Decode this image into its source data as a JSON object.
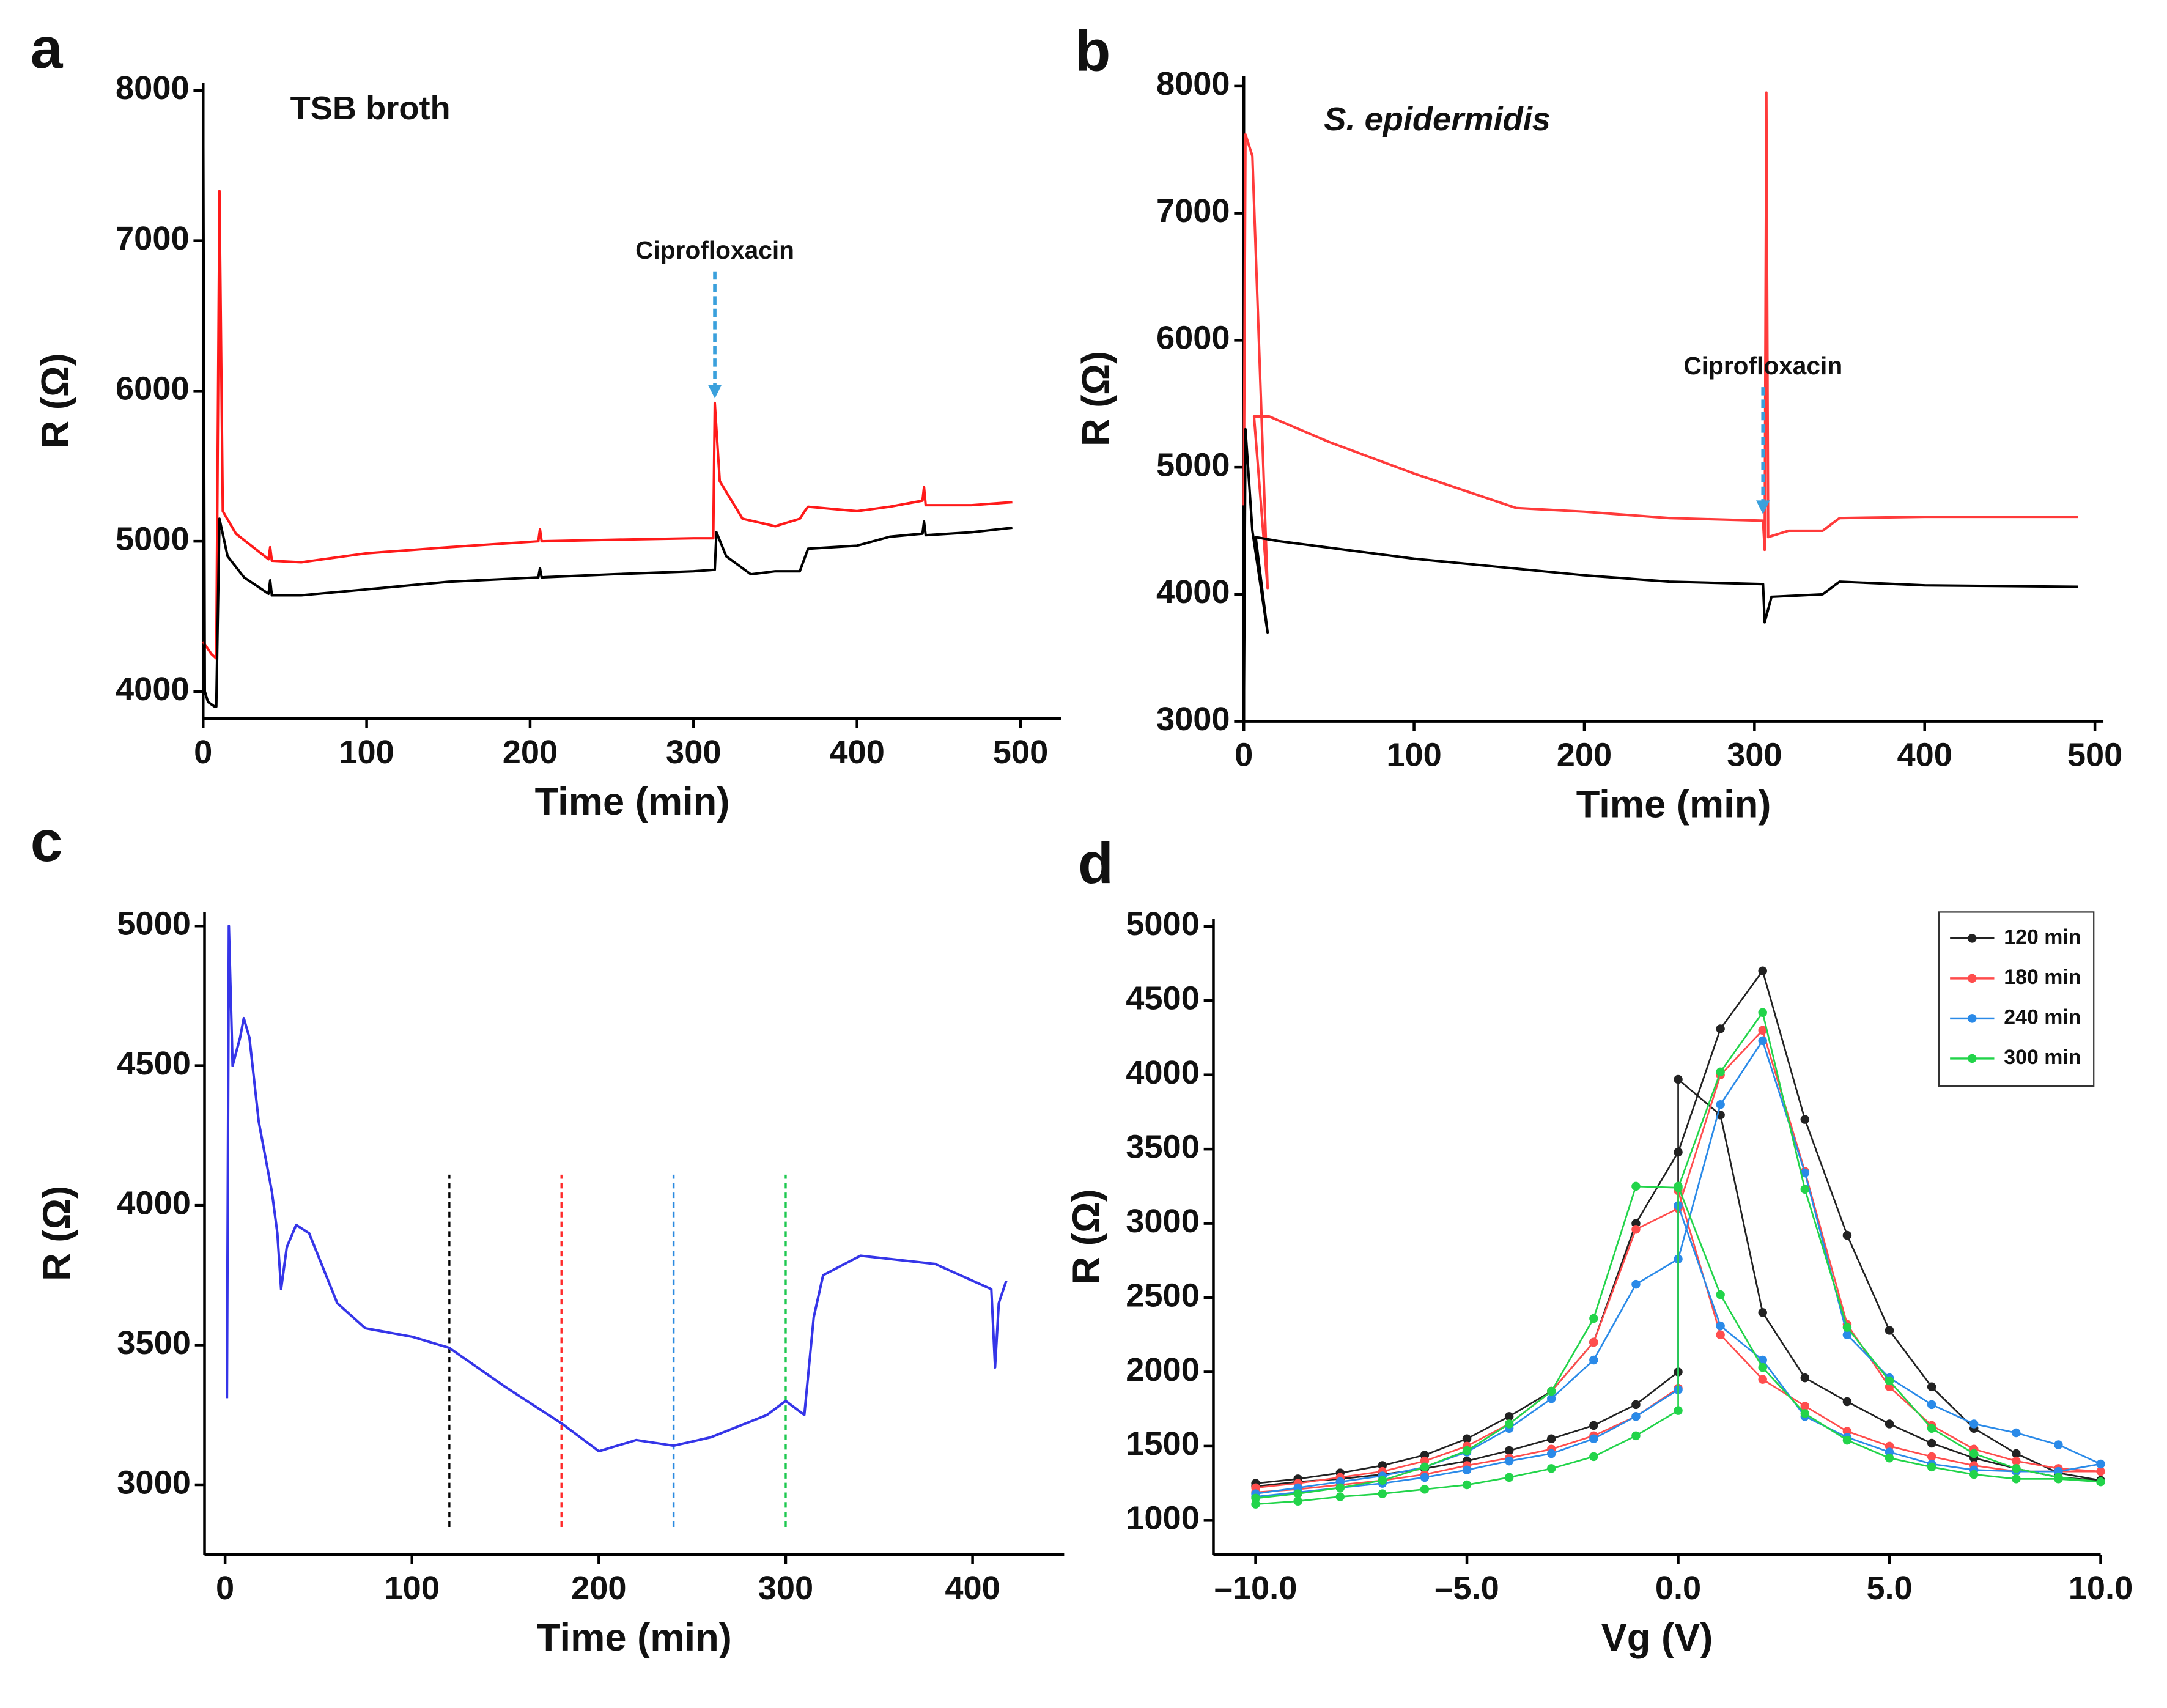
{
  "chart_data": [
    {
      "type": "line",
      "label": "a",
      "title": "TSB broth",
      "xlabel": "Time (min)",
      "ylabel": "R (Ω)",
      "xlim": [
        0,
        525
      ],
      "ylim": [
        3820,
        8050
      ],
      "xticks": [
        0,
        100,
        200,
        300,
        400,
        500
      ],
      "yticks": [
        4000,
        5000,
        6000,
        7000,
        8000
      ],
      "annotations": [
        {
          "text": "Ciprofloxacin",
          "x": 313,
          "y": 5950,
          "color": "#3aa0dc"
        }
      ],
      "series": [
        {
          "color": "#ff1a1a",
          "x": [
            0,
            5,
            8,
            10,
            12,
            20,
            40,
            41,
            42,
            60,
            100,
            150,
            205,
            206,
            207,
            250,
            300,
            312,
            313,
            316,
            330,
            350,
            365,
            368,
            370,
            400,
            420,
            440,
            441,
            442,
            470,
            495
          ],
          "values": [
            4330,
            4250,
            4220,
            7330,
            5200,
            5050,
            4880,
            4960,
            4870,
            4860,
            4920,
            4960,
            5000,
            5080,
            5000,
            5010,
            5020,
            5020,
            5920,
            5400,
            5150,
            5100,
            5150,
            5200,
            5230,
            5200,
            5230,
            5270,
            5360,
            5240,
            5240,
            5260
          ]
        },
        {
          "color": "#000000",
          "x": [
            0,
            1,
            3,
            7,
            8,
            10,
            15,
            25,
            40,
            41,
            42,
            60,
            100,
            150,
            205,
            206,
            207,
            250,
            300,
            313,
            314,
            320,
            335,
            350,
            365,
            370,
            400,
            420,
            440,
            441,
            442,
            470,
            495
          ],
          "values": [
            7950,
            4000,
            3930,
            3900,
            3900,
            5150,
            4900,
            4760,
            4650,
            4740,
            4640,
            4640,
            4680,
            4730,
            4760,
            4820,
            4760,
            4780,
            4800,
            4810,
            5060,
            4900,
            4780,
            4800,
            4800,
            4950,
            4970,
            5030,
            5050,
            5130,
            5040,
            5060,
            5090
          ]
        }
      ]
    },
    {
      "type": "line",
      "label": "b",
      "title": "S. epidermidis",
      "xlabel": "Time (min)",
      "ylabel": "R (Ω)",
      "xlim": [
        0,
        505
      ],
      "ylim": [
        3000,
        8080
      ],
      "xticks": [
        0,
        100,
        200,
        300,
        400,
        500
      ],
      "yticks": [
        3000,
        4000,
        5000,
        6000,
        7000,
        8000
      ],
      "annotations": [
        {
          "text": "Ciprofloxacin",
          "x": 305,
          "y": 4630,
          "color": "#3aa0dc"
        }
      ],
      "series": [
        {
          "color": "#ff3b3b",
          "x": [
            0,
            1,
            5,
            14,
            6,
            15,
            50,
            100,
            160,
            200,
            250,
            305,
            306,
            307,
            308,
            320,
            340,
            350,
            400,
            490
          ],
          "values": [
            4700,
            7620,
            7450,
            4050,
            5400,
            5400,
            5200,
            4950,
            4680,
            4650,
            4600,
            4580,
            4350,
            7950,
            4450,
            4500,
            4500,
            4600,
            4610,
            4610
          ]
        },
        {
          "color": "#000000",
          "x": [
            0,
            1,
            5,
            14,
            7,
            20,
            100,
            200,
            250,
            305,
            306,
            310,
            340,
            350,
            400,
            490
          ],
          "values": [
            3000,
            5300,
            4500,
            3700,
            4450,
            4420,
            4280,
            4150,
            4100,
            4080,
            3780,
            3980,
            4000,
            4100,
            4070,
            4060
          ]
        }
      ]
    },
    {
      "type": "line",
      "label": "c",
      "xlabel": "Time (min)",
      "ylabel": "R (Ω)",
      "xlim": [
        -11,
        449
      ],
      "ylim": [
        2750,
        5050
      ],
      "xticks": [
        0,
        100,
        200,
        300,
        400
      ],
      "yticks": [
        3000,
        3500,
        4000,
        4500,
        5000
      ],
      "reference_lines": [
        {
          "x": 120,
          "top": 4110,
          "color": "#000000"
        },
        {
          "x": 180,
          "top": 4110,
          "color": "#ff2a2a"
        },
        {
          "x": 240,
          "top": 4110,
          "color": "#2a8ae0"
        },
        {
          "x": 300,
          "top": 4110,
          "color": "#1ec850"
        }
      ],
      "series": [
        {
          "color": "#3535e8",
          "x": [
            1,
            2,
            4,
            8,
            10,
            13,
            18,
            25,
            28,
            30,
            33,
            38,
            45,
            60,
            75,
            100,
            120,
            150,
            180,
            200,
            220,
            240,
            260,
            290,
            300,
            310,
            315,
            320,
            340,
            380,
            410,
            412,
            414,
            418
          ],
          "values": [
            3310,
            5000,
            4500,
            4600,
            4670,
            4600,
            4300,
            4050,
            3900,
            3700,
            3850,
            3930,
            3900,
            3650,
            3560,
            3530,
            3490,
            3350,
            3220,
            3120,
            3160,
            3140,
            3170,
            3250,
            3300,
            3250,
            3600,
            3750,
            3820,
            3790,
            3700,
            3420,
            3650,
            3730
          ]
        }
      ]
    },
    {
      "type": "line",
      "label": "d",
      "xlabel": "Vg (V)",
      "ylabel": "R (Ω)",
      "markers": true,
      "legend": "top-right",
      "xlim": [
        -11,
        10
      ],
      "ylim": [
        770,
        5050
      ],
      "xticks": [
        {
          "value": -10,
          "label": "–10.0"
        },
        {
          "value": -5,
          "label": "–5.0"
        },
        {
          "value": 0,
          "label": "0.0"
        },
        {
          "value": 5,
          "label": "5.0"
        },
        {
          "value": 10,
          "label": "10.0"
        }
      ],
      "yticks": [
        1000,
        1500,
        2000,
        2500,
        3000,
        3500,
        4000,
        4500,
        5000
      ],
      "x": [
        -10,
        -9,
        -8,
        -7,
        -6,
        -5,
        -4,
        -3,
        -2,
        -1,
        0,
        1,
        2,
        3,
        4,
        5,
        6,
        7,
        8,
        9,
        10,
        9,
        8,
        7,
        6,
        5,
        4,
        3,
        2,
        1,
        0,
        0,
        -1,
        -2,
        -3,
        -4,
        -5,
        -6,
        -7,
        -8,
        -9,
        -10
      ],
      "series": [
        {
          "name": "120 min",
          "color": "#222222",
          "values": [
            1250,
            1280,
            1320,
            1370,
            1440,
            1550,
            1700,
            1870,
            2200,
            3000,
            3480,
            4310,
            4700,
            3700,
            2920,
            2280,
            1900,
            1620,
            1450,
            1320,
            1270,
            1290,
            1350,
            1420,
            1520,
            1650,
            1800,
            1960,
            2400,
            3730,
            3970,
            2000,
            1780,
            1640,
            1550,
            1470,
            1400,
            1350,
            1310,
            1280,
            1260,
            1230
          ]
        },
        {
          "name": "180 min",
          "color": "#ff4d4d",
          "values": [
            1220,
            1250,
            1290,
            1330,
            1400,
            1500,
            1650,
            1870,
            2200,
            2960,
            3100,
            4000,
            4300,
            3350,
            2320,
            1900,
            1640,
            1480,
            1400,
            1350,
            1330,
            1330,
            1330,
            1370,
            1430,
            1500,
            1600,
            1770,
            1950,
            2250,
            3220,
            1890,
            1700,
            1570,
            1480,
            1420,
            1370,
            1310,
            1270,
            1240,
            1210,
            1190
          ]
        },
        {
          "name": "240 min",
          "color": "#2a8ae8",
          "values": [
            1180,
            1220,
            1260,
            1300,
            1360,
            1460,
            1620,
            1820,
            2080,
            2590,
            2760,
            3800,
            4230,
            3340,
            2250,
            1960,
            1780,
            1650,
            1590,
            1510,
            1380,
            1330,
            1330,
            1340,
            1380,
            1460,
            1560,
            1700,
            2080,
            2310,
            3120,
            1880,
            1700,
            1550,
            1450,
            1400,
            1340,
            1290,
            1250,
            1220,
            1190,
            1160
          ]
        },
        {
          "name": "300 min",
          "color": "#22d44a",
          "values": [
            1150,
            1180,
            1220,
            1270,
            1360,
            1470,
            1650,
            1870,
            2360,
            3250,
            3240,
            4020,
            4420,
            3230,
            2300,
            1940,
            1620,
            1450,
            1350,
            1290,
            1260,
            1280,
            1280,
            1310,
            1360,
            1420,
            1540,
            1720,
            2030,
            2520,
            3250,
            1740,
            1570,
            1430,
            1350,
            1290,
            1240,
            1210,
            1180,
            1160,
            1130,
            1110
          ]
        }
      ]
    }
  ]
}
